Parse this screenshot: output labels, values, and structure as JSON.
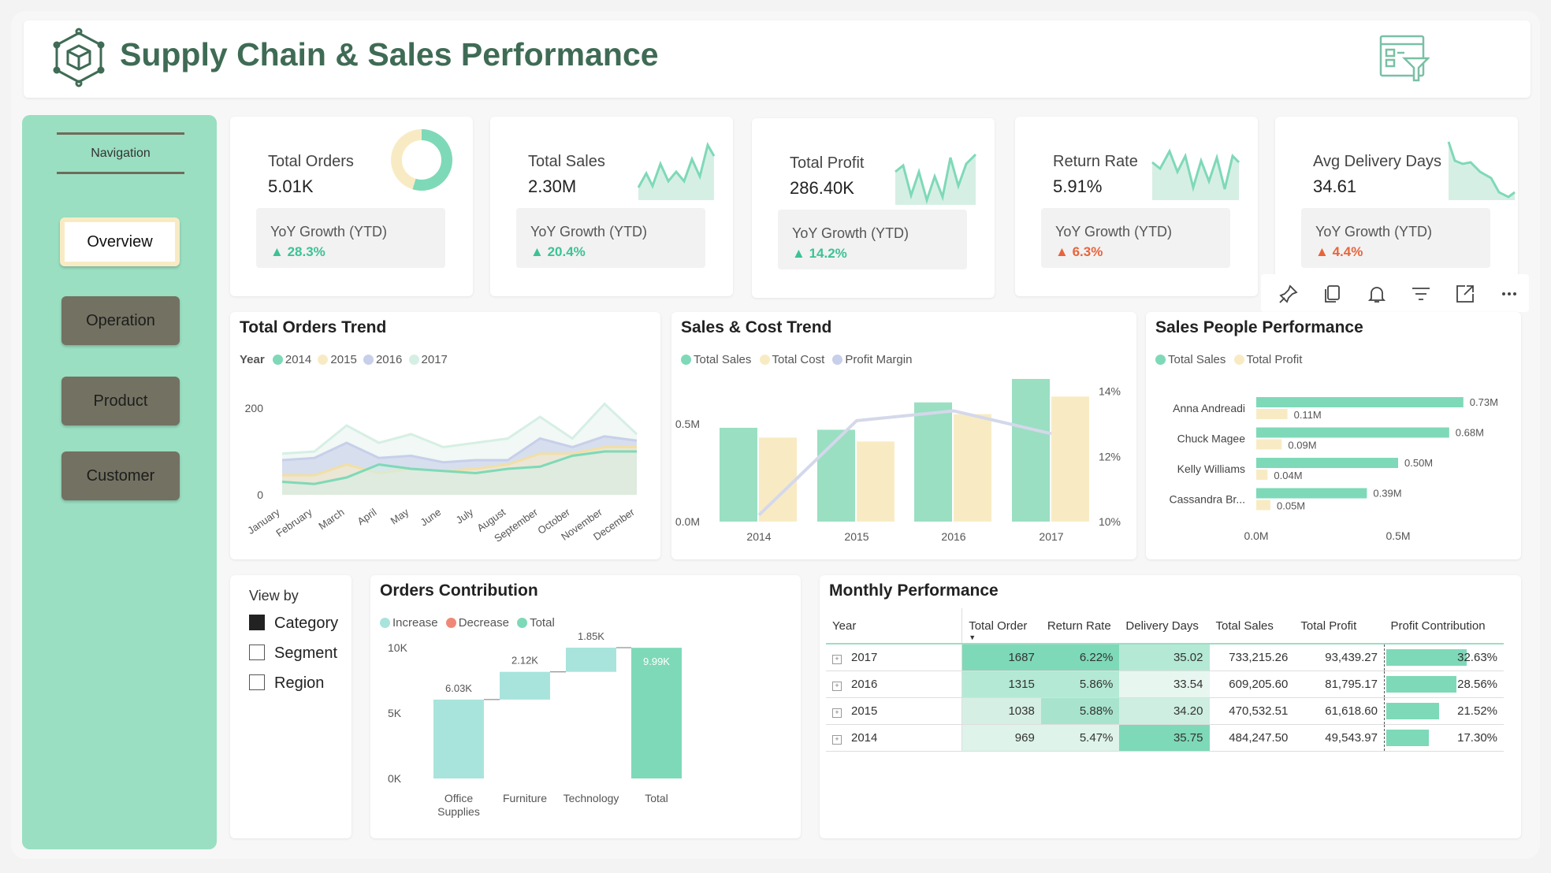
{
  "header": {
    "title": "Supply Chain & Sales Performance"
  },
  "nav": {
    "label": "Navigation",
    "buttons": [
      "Overview",
      "Operation",
      "Product",
      "Customer"
    ]
  },
  "kpis": [
    {
      "title": "Total Orders",
      "value": "5.01K",
      "yoy_label": "YoY Growth (YTD)",
      "yoy": "28.3%",
      "dir": "up"
    },
    {
      "title": "Total Sales",
      "value": "2.30M",
      "yoy_label": "YoY Growth (YTD)",
      "yoy": "20.4%",
      "dir": "up"
    },
    {
      "title": "Total Profit",
      "value": "286.40K",
      "yoy_label": "YoY Growth (YTD)",
      "yoy": "14.2%",
      "dir": "up"
    },
    {
      "title": "Return Rate",
      "value": "5.91%",
      "yoy_label": "YoY Growth (YTD)",
      "yoy": "6.3%",
      "dir": "up-bad"
    },
    {
      "title": "Avg Delivery Days",
      "value": "34.61",
      "yoy_label": "YoY Growth (YTD)",
      "yoy": "4.4%",
      "dir": "up-bad"
    }
  ],
  "colors": {
    "green": "#7ed9b8",
    "cream": "#f8ebc4",
    "light": "#d6efe4",
    "lavender": "#c7cfea",
    "red": "#f08878",
    "up_green": "#3cc296",
    "up_red": "#e8643c"
  },
  "toolbar_icons": [
    "pin-icon",
    "copy-icon",
    "bell-icon",
    "filter-icon",
    "expand-icon",
    "more-icon"
  ],
  "orders_trend": {
    "title": "Total Orders Trend",
    "legend_title": "Year",
    "legend": [
      "2014",
      "2015",
      "2016",
      "2017"
    ],
    "y_ticks": [
      "200",
      "0"
    ],
    "months": [
      "January",
      "February",
      "March",
      "April",
      "May",
      "June",
      "July",
      "August",
      "September",
      "October",
      "November",
      "December"
    ]
  },
  "sales_cost": {
    "title": "Sales & Cost Trend",
    "legend": [
      "Total Sales",
      "Total Cost",
      "Profit Margin"
    ],
    "y_left": [
      "0.5M",
      "0.0M"
    ],
    "y_right": [
      "14%",
      "12%",
      "10%"
    ],
    "years": [
      "2014",
      "2015",
      "2016",
      "2017"
    ]
  },
  "sales_people": {
    "title": "Sales People Performance",
    "legend": [
      "Total Sales",
      "Total Profit"
    ],
    "x_ticks": [
      "0.0M",
      "0.5M"
    ]
  },
  "view_by": {
    "title": "View by",
    "options": [
      {
        "label": "Category",
        "checked": true
      },
      {
        "label": "Segment",
        "checked": false
      },
      {
        "label": "Region",
        "checked": false
      }
    ]
  },
  "orders_contribution": {
    "title": "Orders Contribution",
    "legend": [
      "Increase",
      "Decrease",
      "Total"
    ],
    "y_ticks": [
      "10K",
      "5K",
      "0K"
    ],
    "categories": [
      "Office\nSupplies",
      "Furniture",
      "Technology",
      "Total"
    ]
  },
  "monthly": {
    "title": "Monthly Performance",
    "columns": [
      "Year",
      "Total Order",
      "Return Rate",
      "Delivery Days",
      "Total Sales",
      "Total Profit",
      "Profit Contribution"
    ],
    "rows": [
      {
        "year": "2017",
        "orders": "1687",
        "return": "6.22%",
        "delivery": "35.02",
        "sales": "733,215.26",
        "profit": "93,439.27",
        "contrib": "32.63%",
        "contrib_frac": 0.93
      },
      {
        "year": "2016",
        "orders": "1315",
        "return": "5.86%",
        "delivery": "33.54",
        "sales": "609,205.60",
        "profit": "81,795.17",
        "contrib": "28.56%",
        "contrib_frac": 0.81
      },
      {
        "year": "2015",
        "orders": "1038",
        "return": "5.88%",
        "delivery": "34.20",
        "sales": "470,532.51",
        "profit": "61,618.60",
        "contrib": "21.52%",
        "contrib_frac": 0.61
      },
      {
        "year": "2014",
        "orders": "969",
        "return": "5.47%",
        "delivery": "35.75",
        "sales": "484,247.50",
        "profit": "49,543.97",
        "contrib": "17.30%",
        "contrib_frac": 0.49
      }
    ]
  },
  "chart_data": [
    {
      "type": "line",
      "title": "Total Orders Trend",
      "x": [
        "January",
        "February",
        "March",
        "April",
        "May",
        "June",
        "July",
        "August",
        "September",
        "October",
        "November",
        "December"
      ],
      "ylim": [
        0,
        280
      ],
      "series": [
        {
          "name": "2014",
          "values": [
            30,
            25,
            40,
            70,
            60,
            55,
            50,
            60,
            65,
            90,
            100,
            100
          ]
        },
        {
          "name": "2015",
          "values": [
            45,
            45,
            70,
            50,
            60,
            55,
            60,
            70,
            95,
            95,
            110,
            110
          ]
        },
        {
          "name": "2016",
          "values": [
            80,
            85,
            120,
            85,
            90,
            75,
            80,
            80,
            130,
            110,
            135,
            125
          ]
        },
        {
          "name": "2017",
          "values": [
            95,
            100,
            160,
            120,
            140,
            110,
            120,
            130,
            180,
            130,
            210,
            140
          ]
        }
      ]
    },
    {
      "type": "bar",
      "title": "Sales & Cost Trend",
      "categories": [
        "2014",
        "2015",
        "2016",
        "2017"
      ],
      "series": [
        {
          "name": "Total Sales",
          "values": [
            0.48,
            0.47,
            0.61,
            0.73
          ]
        },
        {
          "name": "Total Cost",
          "values": [
            0.43,
            0.41,
            0.55,
            0.64
          ]
        },
        {
          "name": "Profit Margin",
          "values": [
            10.2,
            13.1,
            13.4,
            12.7
          ],
          "axis": "right"
        }
      ],
      "ylim": [
        0,
        0.75
      ],
      "y2lim": [
        10,
        14.5
      ]
    },
    {
      "type": "bar",
      "title": "Sales People Performance",
      "categories": [
        "Anna Andreadi",
        "Chuck Magee",
        "Kelly Williams",
        "Cassandra Br..."
      ],
      "series": [
        {
          "name": "Total Sales",
          "values": [
            0.73,
            0.68,
            0.5,
            0.39
          ],
          "labels": [
            "0.73M",
            "0.68M",
            "0.50M",
            "0.39M"
          ]
        },
        {
          "name": "Total Profit",
          "values": [
            0.11,
            0.09,
            0.04,
            0.05
          ],
          "labels": [
            "0.11M",
            "0.09M",
            "0.04M",
            "0.05M"
          ]
        }
      ],
      "xlim": [
        0,
        0.75
      ]
    },
    {
      "type": "bar",
      "title": "Orders Contribution",
      "categories": [
        "Office Supplies",
        "Furniture",
        "Technology",
        "Total"
      ],
      "values": [
        6.03,
        2.12,
        1.85,
        9.99
      ],
      "labels": [
        "6.03K",
        "2.12K",
        "1.85K",
        "9.99K"
      ],
      "ylim": [
        0,
        10
      ]
    }
  ]
}
